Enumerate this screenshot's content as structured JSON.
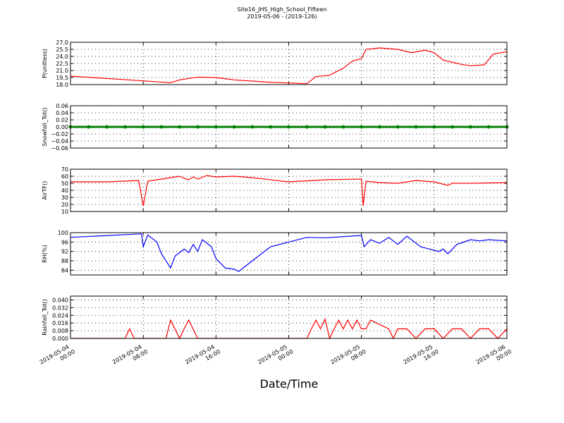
{
  "title": "Site16_JHS_High_School_Fifteen",
  "subtitle": "2019-05-06 - (2019-126)",
  "x_axis": {
    "label": "Date/Time",
    "xlim": [
      "2019-05-04 00:00",
      "2019-05-06 00:00"
    ],
    "xticks": [
      {
        "value": "2019-05-04 00:00",
        "label": [
          "2019-05-04",
          "00:00"
        ]
      },
      {
        "value": "2019-05-04 08:00",
        "label": [
          "2019-05-04",
          "08:00"
        ]
      },
      {
        "value": "2019-05-04 16:00",
        "label": [
          "2019-05-04",
          "16:00"
        ]
      },
      {
        "value": "2019-05-05 00:00",
        "label": [
          "2019-05-05",
          "00:00"
        ]
      },
      {
        "value": "2019-05-05 08:00",
        "label": [
          "2019-05-05",
          "08:00"
        ]
      },
      {
        "value": "2019-05-05 16:00",
        "label": [
          "2019-05-05",
          "16:00"
        ]
      },
      {
        "value": "2019-05-06 00:00",
        "label": [
          "2019-05-06",
          "00:00"
        ]
      }
    ]
  },
  "chart_data": [
    {
      "type": "line",
      "ylabel": "P(unitless)",
      "color": "#ff0000",
      "grid": true,
      "ylim": [
        18,
        27
      ],
      "yticks": [
        {
          "value": 18,
          "label": "18.0"
        },
        {
          "value": 19.5,
          "label": "19.5"
        },
        {
          "value": 21,
          "label": "21.0"
        },
        {
          "value": 22.5,
          "label": "22.5"
        },
        {
          "value": 24,
          "label": "24.0"
        },
        {
          "value": 25.5,
          "label": "25.5"
        },
        {
          "value": 27,
          "label": "27.0"
        }
      ],
      "x": [
        "2019-05-04 00:00",
        "2019-05-04 04:00",
        "2019-05-04 08:00",
        "2019-05-04 11:00",
        "2019-05-04 12:00",
        "2019-05-04 14:00",
        "2019-05-04 16:00",
        "2019-05-04 18:00",
        "2019-05-04 22:00",
        "2019-05-05 02:00",
        "2019-05-05 03:00",
        "2019-05-05 04:30",
        "2019-05-05 06:00",
        "2019-05-05 07:00",
        "2019-05-05 08:00",
        "2019-05-05 08:30",
        "2019-05-05 10:00",
        "2019-05-05 12:00",
        "2019-05-05 13:30",
        "2019-05-05 15:00",
        "2019-05-05 16:00",
        "2019-05-05 17:00",
        "2019-05-05 19:00",
        "2019-05-05 20:00",
        "2019-05-05 21:30",
        "2019-05-05 22:30",
        "2019-05-06 00:00"
      ],
      "values": [
        19.8,
        19.3,
        18.8,
        18.4,
        19.0,
        19.6,
        19.5,
        19.0,
        18.5,
        18.2,
        19.7,
        20.0,
        21.5,
        23.0,
        23.5,
        25.5,
        25.8,
        25.5,
        24.8,
        25.3,
        24.8,
        23.2,
        22.3,
        22.0,
        22.2,
        24.5,
        25.0
      ]
    },
    {
      "type": "line",
      "ylabel": "Snowfall_Tot()",
      "color": "#008000",
      "markers": true,
      "grid": true,
      "ylim": [
        -0.06,
        0.06
      ],
      "yticks": [
        {
          "value": -0.06,
          "label": "−0.06"
        },
        {
          "value": -0.04,
          "label": "−0.04"
        },
        {
          "value": -0.02,
          "label": "−0.02"
        },
        {
          "value": 0,
          "label": "0.00"
        },
        {
          "value": 0.02,
          "label": "0.02"
        },
        {
          "value": 0.04,
          "label": "0.04"
        },
        {
          "value": 0.06,
          "label": "0.06"
        }
      ],
      "x": [
        "2019-05-04 00:00",
        "2019-05-04 02:00",
        "2019-05-04 04:00",
        "2019-05-04 06:00",
        "2019-05-04 08:00",
        "2019-05-04 10:00",
        "2019-05-04 12:00",
        "2019-05-04 14:00",
        "2019-05-04 16:00",
        "2019-05-04 18:00",
        "2019-05-04 20:00",
        "2019-05-04 22:00",
        "2019-05-05 00:00",
        "2019-05-05 02:00",
        "2019-05-05 04:00",
        "2019-05-05 06:00",
        "2019-05-05 08:00",
        "2019-05-05 10:00",
        "2019-05-05 12:00",
        "2019-05-05 14:00",
        "2019-05-05 16:00",
        "2019-05-05 18:00",
        "2019-05-05 20:00",
        "2019-05-05 22:00",
        "2019-05-06 00:00"
      ],
      "values": [
        0,
        0,
        0,
        0,
        0,
        0,
        0,
        0,
        0,
        0,
        0,
        0,
        0,
        0,
        0,
        0,
        0,
        0,
        0,
        0,
        0,
        0,
        0,
        0,
        0
      ]
    },
    {
      "type": "line",
      "ylabel": "AirTF()",
      "color": "#ff0000",
      "grid": true,
      "ylim": [
        10,
        70
      ],
      "yticks": [
        10,
        20,
        30,
        40,
        50,
        60,
        70
      ],
      "x": [
        "2019-05-04 00:00",
        "2019-05-04 04:00",
        "2019-05-04 07:30",
        "2019-05-04 08:00",
        "2019-05-04 08:30",
        "2019-05-04 10:00",
        "2019-05-04 11:00",
        "2019-05-04 12:00",
        "2019-05-04 12:30",
        "2019-05-04 13:00",
        "2019-05-04 13:30",
        "2019-05-04 14:00",
        "2019-05-04 15:00",
        "2019-05-04 16:00",
        "2019-05-04 18:00",
        "2019-05-04 20:00",
        "2019-05-05 00:00",
        "2019-05-05 04:00",
        "2019-05-05 08:00",
        "2019-05-05 08:12",
        "2019-05-05 08:30",
        "2019-05-05 10:00",
        "2019-05-05 12:00",
        "2019-05-05 14:00",
        "2019-05-05 16:00",
        "2019-05-05 17:30",
        "2019-05-05 18:00",
        "2019-05-05 20:00",
        "2019-05-06 00:00"
      ],
      "values": [
        52,
        52,
        54,
        18,
        53,
        56,
        58,
        60,
        57,
        55,
        59,
        56,
        61,
        59,
        60,
        58,
        52,
        55,
        56,
        18,
        53,
        51,
        50,
        54,
        52,
        47,
        50,
        50,
        51
      ]
    },
    {
      "type": "line",
      "ylabel": "RH(%)",
      "color": "#0000ff",
      "grid": true,
      "ylim": [
        82,
        100
      ],
      "yticks": [
        84,
        88,
        92,
        96,
        100
      ],
      "x": [
        "2019-05-04 00:00",
        "2019-05-04 07:48",
        "2019-05-04 08:00",
        "2019-05-04 08:30",
        "2019-05-04 09:30",
        "2019-05-04 10:00",
        "2019-05-04 11:00",
        "2019-05-04 11:30",
        "2019-05-04 12:30",
        "2019-05-04 13:00",
        "2019-05-04 13:30",
        "2019-05-04 14:00",
        "2019-05-04 14:30",
        "2019-05-04 15:30",
        "2019-05-04 16:00",
        "2019-05-04 17:00",
        "2019-05-04 18:00",
        "2019-05-04 18:30",
        "2019-05-04 19:00",
        "2019-05-04 20:00",
        "2019-05-04 21:00",
        "2019-05-04 22:00",
        "2019-05-05 00:00",
        "2019-05-05 02:00",
        "2019-05-05 04:00",
        "2019-05-05 08:00",
        "2019-05-05 08:18",
        "2019-05-05 09:00",
        "2019-05-05 10:00",
        "2019-05-05 11:00",
        "2019-05-05 12:00",
        "2019-05-05 13:00",
        "2019-05-05 14:30",
        "2019-05-05 15:30",
        "2019-05-05 16:30",
        "2019-05-05 17:00",
        "2019-05-05 17:30",
        "2019-05-05 18:30",
        "2019-05-05 20:00",
        "2019-05-05 21:00",
        "2019-05-05 22:00",
        "2019-05-06 00:00"
      ],
      "values": [
        98,
        99.5,
        94,
        99,
        96,
        91,
        85,
        90,
        93,
        91.5,
        95,
        92,
        97,
        94,
        89,
        85,
        84.5,
        83.5,
        85,
        88,
        91,
        94,
        96,
        98,
        97.8,
        98.8,
        94,
        97,
        95.5,
        98,
        95,
        98.5,
        94,
        93,
        92,
        93,
        91,
        95,
        97,
        96.5,
        97,
        96.5
      ]
    },
    {
      "type": "line",
      "ylabel": "Rainfall_Tot()",
      "color": "#ff0000",
      "grid": true,
      "ylim": [
        0,
        0.044
      ],
      "yticks": [
        {
          "value": 0,
          "label": "0.000"
        },
        {
          "value": 0.008,
          "label": "0.008"
        },
        {
          "value": 0.016,
          "label": "0.016"
        },
        {
          "value": 0.024,
          "label": "0.024"
        },
        {
          "value": 0.032,
          "label": "0.032"
        },
        {
          "value": 0.04,
          "label": "0.040"
        }
      ],
      "x": [
        "2019-05-04 00:00",
        "2019-05-04 06:00",
        "2019-05-04 06:30",
        "2019-05-04 07:00",
        "2019-05-04 10:30",
        "2019-05-04 11:00",
        "2019-05-04 12:00",
        "2019-05-04 12:30",
        "2019-05-04 13:00",
        "2019-05-04 14:00",
        "2019-05-05 02:00",
        "2019-05-05 02:30",
        "2019-05-05 03:00",
        "2019-05-05 03:30",
        "2019-05-05 04:00",
        "2019-05-05 04:30",
        "2019-05-05 05:00",
        "2019-05-05 05:30",
        "2019-05-05 06:00",
        "2019-05-05 06:30",
        "2019-05-05 07:00",
        "2019-05-05 07:30",
        "2019-05-05 08:00",
        "2019-05-05 08:30",
        "2019-05-05 09:00",
        "2019-05-05 11:00",
        "2019-05-05 11:30",
        "2019-05-05 12:00",
        "2019-05-05 13:00",
        "2019-05-05 14:00",
        "2019-05-05 15:00",
        "2019-05-05 16:00",
        "2019-05-05 17:00",
        "2019-05-05 18:00",
        "2019-05-05 19:00",
        "2019-05-05 20:00",
        "2019-05-05 21:00",
        "2019-05-05 22:00",
        "2019-05-05 23:00",
        "2019-05-06 00:00"
      ],
      "values": [
        0,
        0,
        0.01,
        0,
        0,
        0.019,
        0,
        0.01,
        0.019,
        0,
        0,
        0.01,
        0.019,
        0.01,
        0.02,
        0,
        0.01,
        0.019,
        0.01,
        0.019,
        0.01,
        0.019,
        0.01,
        0.01,
        0.019,
        0.01,
        0,
        0.01,
        0.01,
        0,
        0.01,
        0.01,
        0,
        0.01,
        0.01,
        0,
        0.01,
        0.01,
        0,
        0.01
      ]
    }
  ]
}
